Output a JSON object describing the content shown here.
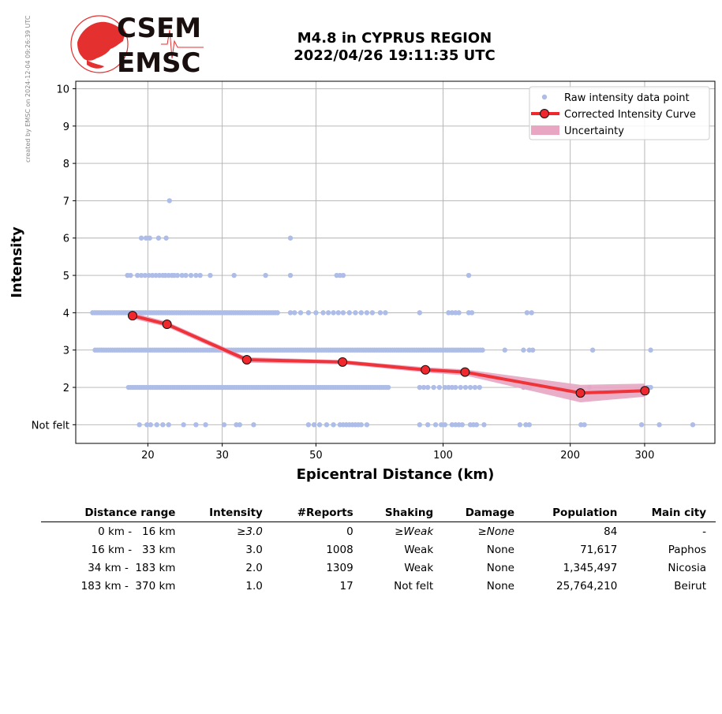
{
  "created_note": "created by EMSC on 2024-12-04 09:26:39 UTC",
  "logo": {
    "line1": "CSEM",
    "line2": "EMSC",
    "color": "#e53030"
  },
  "title": {
    "line1": "M4.8 in CYPRUS REGION",
    "line2": "2022/04/26 19:11:35 UTC"
  },
  "chart_data": {
    "type": "scatter",
    "xlabel": "Epicentral Distance (km)",
    "ylabel": "Intensity",
    "x_scale": "log",
    "xlim": [
      13.5,
      440
    ],
    "ylim": [
      0.5,
      10.2
    ],
    "x_ticks": [
      20,
      30,
      50,
      100,
      200,
      300
    ],
    "y_ticks": [
      {
        "value": 1,
        "label": "Not felt"
      },
      {
        "value": 2,
        "label": "2"
      },
      {
        "value": 3,
        "label": "3"
      },
      {
        "value": 4,
        "label": "4"
      },
      {
        "value": 5,
        "label": "5"
      },
      {
        "value": 6,
        "label": "6"
      },
      {
        "value": 7,
        "label": "7"
      },
      {
        "value": 8,
        "label": "8"
      },
      {
        "value": 9,
        "label": "9"
      },
      {
        "value": 10,
        "label": "10"
      }
    ],
    "grid": true,
    "legend_position": "top-right",
    "legend": [
      {
        "label": "Raw intensity data point",
        "kind": "dot",
        "color": "#aebde8"
      },
      {
        "label": "Corrected Intensity Curve",
        "kind": "line-marker",
        "color": "#f0282d"
      },
      {
        "label": "Uncertainty",
        "kind": "band",
        "color": "#e8a6c2"
      }
    ],
    "raw_points": {
      "color": "#aebde8",
      "rows": [
        {
          "intensity": 7,
          "x": [
            22.5
          ]
        },
        {
          "intensity": 6,
          "x": [
            19.3,
            19.8,
            20.2,
            21.2,
            22.1,
            43.5
          ]
        },
        {
          "intensity": 5,
          "x": [
            17.9,
            18.2,
            18.9,
            19.3,
            19.7,
            20.1,
            20.5,
            20.9,
            21.3,
            21.7,
            22.0,
            22.4,
            22.8,
            23.1,
            23.5,
            24.1,
            24.6,
            25.3,
            26.0,
            26.6,
            28.1,
            32.0,
            38.0,
            43.5,
            56.0,
            57.0,
            58.0,
            115.0
          ]
        },
        {
          "intensity": 4,
          "range": [
            14.8,
            41.0
          ],
          "step": 0.012,
          "extra": [
            43.5,
            44.5,
            46.0,
            48.0,
            50.0,
            52.0,
            53.5,
            55.0,
            56.5,
            58.0,
            60.0,
            62.0,
            64.0,
            66.0,
            68.0,
            71.0,
            73.0,
            88.0,
            103.0,
            105.0,
            107.0,
            109.0,
            115.0,
            117.0,
            158.0,
            162.0
          ]
        },
        {
          "intensity": 3,
          "range": [
            15.0,
            125.0
          ],
          "step": 0.012,
          "extra": [
            140.0,
            155.0,
            160.0,
            163.0,
            226.0,
            310.0
          ]
        },
        {
          "intensity": 2,
          "range": [
            18.0,
            75.0
          ],
          "step": 0.012,
          "extra": [
            88.0,
            90.0,
            92.0,
            95.0,
            98.0,
            101.0,
            103.0,
            105.0,
            107.0,
            110.0,
            113.0,
            116.0,
            119.0,
            122.0,
            155.0,
            158.0,
            160.0,
            222.0,
            305.0,
            310.0
          ]
        },
        {
          "intensity": 1,
          "x": [
            19.1,
            19.9,
            20.3,
            21.0,
            21.7,
            22.4,
            24.3,
            26.0,
            27.4,
            30.3,
            32.4,
            33.0,
            35.6,
            48.0,
            49.5,
            51.0,
            53.0,
            55.0,
            57.0,
            58.0,
            59.0,
            60.0,
            61.0,
            62.0,
            63.0,
            64.0,
            66.0,
            88.0,
            92.0,
            96.0,
            99.0,
            101.0,
            105.0,
            107.0,
            109.0,
            111.0,
            116.0,
            118.0,
            120.0,
            125.0,
            152.0,
            157.0,
            160.0,
            212.0,
            216.0,
            295.0,
            325.0,
            390.0
          ]
        }
      ]
    },
    "corrected_curve": {
      "color": "#f0282d",
      "x": [
        18.4,
        22.2,
        34.3,
        57.8,
        90.8,
        112.7,
        211.4,
        300.5
      ],
      "y": [
        3.92,
        3.69,
        2.74,
        2.68,
        2.47,
        2.41,
        1.85,
        1.91
      ],
      "upper": [
        4.0,
        3.76,
        2.81,
        2.73,
        2.54,
        2.48,
        2.07,
        2.1
      ],
      "lower": [
        3.84,
        3.62,
        2.66,
        2.62,
        2.4,
        2.32,
        1.6,
        1.75
      ]
    }
  },
  "table": {
    "headers": [
      "Distance range",
      "Intensity",
      "#Reports",
      "Shaking",
      "Damage",
      "Population",
      "Main city"
    ],
    "rows": [
      {
        "cells": [
          "0 km -   16 km",
          "≥3.0",
          "0",
          "≥Weak",
          "≥None",
          "84",
          "-"
        ],
        "italic": [
          false,
          true,
          false,
          true,
          true,
          false,
          false
        ]
      },
      {
        "cells": [
          "16 km -   33 km",
          "3.0",
          "1008",
          "Weak",
          "None",
          "71,617",
          "Paphos"
        ],
        "italic": [
          false,
          false,
          false,
          false,
          false,
          false,
          false
        ]
      },
      {
        "cells": [
          "34 km -  183 km",
          "2.0",
          "1309",
          "Weak",
          "None",
          "1,345,497",
          "Nicosia"
        ],
        "italic": [
          false,
          false,
          false,
          false,
          false,
          false,
          false
        ]
      },
      {
        "cells": [
          "183 km -  370 km",
          "1.0",
          "17",
          "Not felt",
          "None",
          "25,764,210",
          "Beirut"
        ],
        "italic": [
          false,
          false,
          false,
          false,
          false,
          false,
          false
        ]
      }
    ]
  }
}
